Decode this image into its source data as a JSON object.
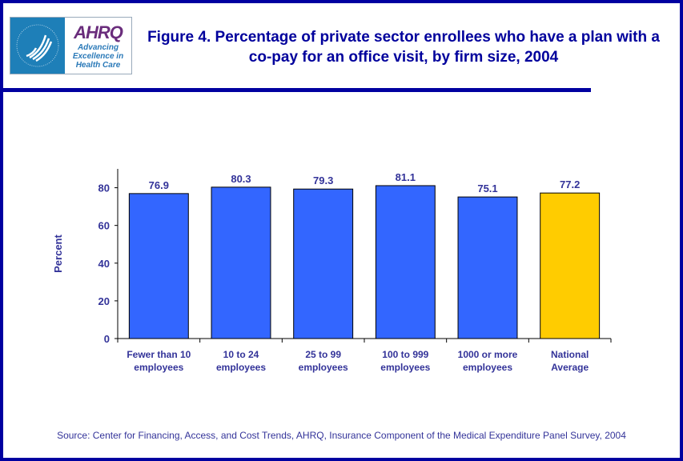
{
  "header": {
    "logo": {
      "hhs_text": "DEPARTMENT OF HEALTH & HUMAN SERVICES USA",
      "name": "AHRQ",
      "tagline": "Advancing Excellence in Health Care"
    },
    "title": "Figure 4. Percentage of private sector enrollees who have a plan with a co-pay for an office visit, by firm size, 2004"
  },
  "colors": {
    "bar": "#3366ff",
    "highlight": "#ffcc00",
    "text": "#333399",
    "frame": "#0000a0"
  },
  "chart_data": {
    "type": "bar",
    "title": "Figure 4. Percentage of private sector enrollees who have a plan with a co-pay for an office visit, by firm size, 2004",
    "categories": [
      [
        "Fewer than 10",
        "employees"
      ],
      [
        "10 to 24",
        "employees"
      ],
      [
        "25 to 99",
        "employees"
      ],
      [
        "100 to 999",
        "employees"
      ],
      [
        "1000 or more",
        "employees"
      ],
      [
        "National",
        "Average"
      ]
    ],
    "values": [
      76.9,
      80.3,
      79.3,
      81.1,
      75.1,
      77.2
    ],
    "labels": [
      "76.9",
      "80.3",
      "79.3",
      "81.1",
      "75.1",
      "77.2"
    ],
    "highlight_index": 5,
    "xlabel": "",
    "ylabel": "Percent",
    "ylim": [
      0,
      90
    ],
    "yticks": [
      0,
      20,
      40,
      60,
      80
    ],
    "grid": false
  },
  "source": "Source: Center for Financing, Access, and Cost Trends, AHRQ, Insurance Component of the Medical Expenditure Panel Survey, 2004"
}
